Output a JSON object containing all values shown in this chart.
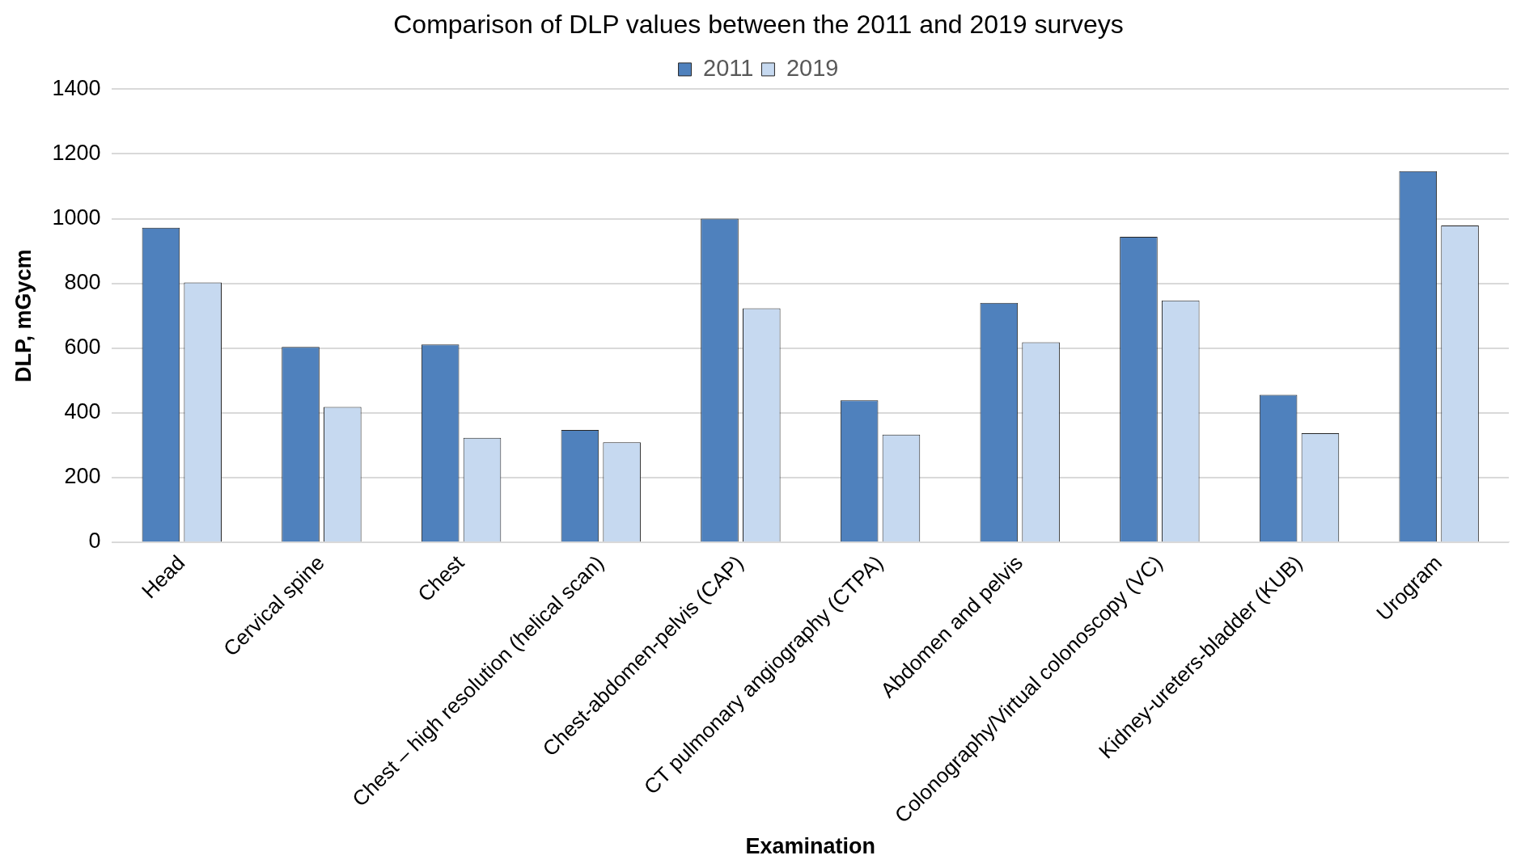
{
  "chart_data": {
    "type": "bar",
    "title": "Comparison of DLP values between the 2011 and 2019 surveys",
    "xlabel": "Examination",
    "ylabel": "DLP, mGycm",
    "categories": [
      "Head",
      "Cervical spine",
      "Chest",
      "Chest – high resolution (helical scan)",
      "Chest-abdomen-pelvis (CAP)",
      "CT pulmonary angiography (CTPA)",
      "Abdomen and pelvis",
      "Colonography/Virtual colonoscopy (VC)",
      "Kidney-ureters-bladder (KUB)",
      "Urogram"
    ],
    "series": [
      {
        "name": "2011",
        "color": "#4f81bd",
        "values": [
          972,
          604,
          611,
          347,
          1000,
          439,
          740,
          944,
          456,
          1147
        ]
      },
      {
        "name": "2019",
        "color": "#c6d9f0",
        "values": [
          803,
          418,
          323,
          309,
          723,
          333,
          618,
          747,
          337,
          979
        ]
      }
    ],
    "ylim": [
      0,
      1400
    ],
    "yticks": [
      0,
      200,
      400,
      600,
      800,
      1000,
      1200,
      1400
    ],
    "grid": "y",
    "legend": "top"
  }
}
